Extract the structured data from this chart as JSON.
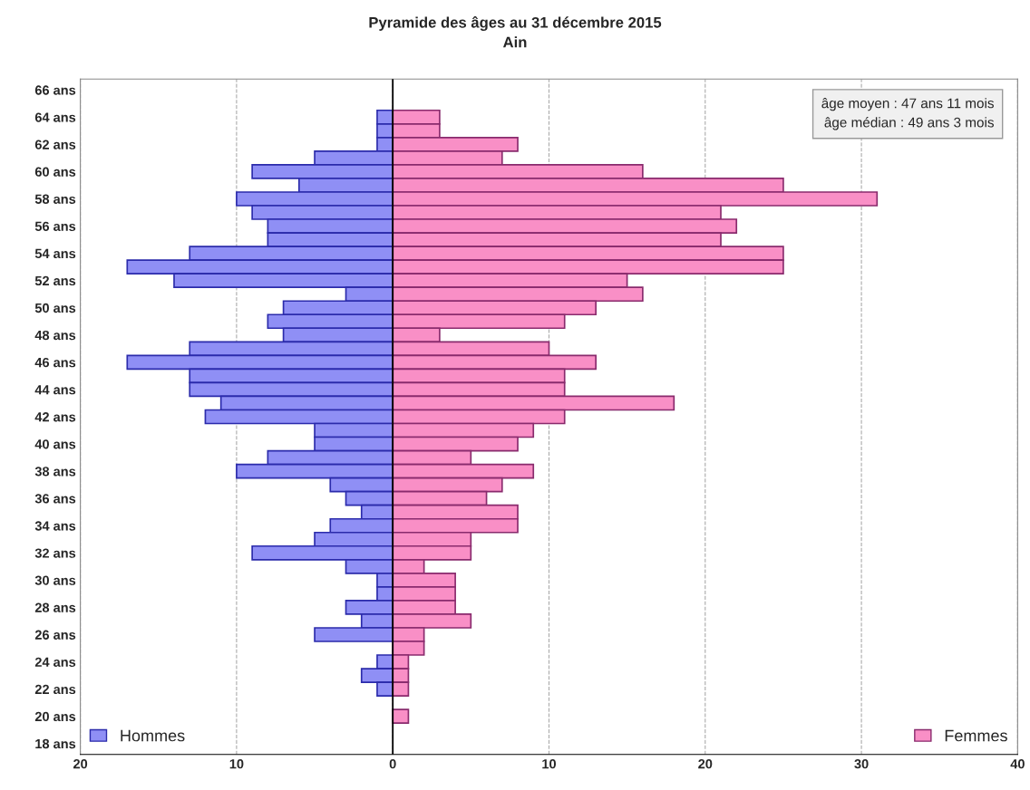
{
  "chart_data": {
    "type": "bar",
    "orientation": "horizontal",
    "stacked": true,
    "legend": "bottom",
    "title": "Pyramide des âges au 31 décembre 2015",
    "subtitle": "Ain",
    "x": [
      64,
      63,
      62,
      61,
      60,
      59,
      58,
      57,
      56,
      55,
      54,
      53,
      52,
      51,
      50,
      49,
      48,
      47,
      46,
      45,
      44,
      43,
      42,
      41,
      40,
      39,
      38,
      37,
      36,
      35,
      34,
      33,
      32,
      31,
      30,
      29,
      28,
      27,
      26,
      25,
      24,
      23,
      22,
      21,
      20
    ],
    "series": [
      {
        "name": "Hommes",
        "color": "#8f8ff5",
        "values": [
          -1,
          -1,
          -1,
          -5,
          -9,
          -6,
          -10,
          -9,
          -8,
          -8,
          -13,
          -17,
          -14,
          -3,
          -7,
          -8,
          -7,
          -13,
          -17,
          -13,
          -13,
          -11,
          -12,
          -5,
          -5,
          -8,
          -10,
          -4,
          -3,
          -2,
          -4,
          -5,
          -9,
          -3,
          -1,
          -1,
          -3,
          -2,
          -5,
          0,
          -1,
          -2,
          -1,
          0,
          0
        ]
      },
      {
        "name": "Femmes",
        "color": "#f98fc6",
        "values": [
          3,
          3,
          8,
          7,
          16,
          25,
          31,
          21,
          22,
          21,
          25,
          25,
          15,
          16,
          13,
          11,
          3,
          10,
          13,
          11,
          11,
          18,
          11,
          9,
          8,
          5,
          9,
          7,
          6,
          8,
          8,
          5,
          5,
          2,
          4,
          4,
          4,
          5,
          2,
          2,
          1,
          1,
          1,
          0,
          1
        ]
      }
    ],
    "xlim": [
      -20,
      40
    ],
    "xticks": [
      {
        "value": -20,
        "label": "20"
      },
      {
        "value": -10,
        "label": "10"
      },
      0,
      10,
      20,
      30,
      40
    ],
    "ylim": [
      17.2,
      66.8
    ],
    "yticks": [
      {
        "value": 18,
        "label": "18 ans"
      },
      {
        "value": 20,
        "label": "20 ans"
      },
      {
        "value": 22,
        "label": "22 ans"
      },
      {
        "value": 24,
        "label": "24 ans"
      },
      {
        "value": 26,
        "label": "26 ans"
      },
      {
        "value": 28,
        "label": "28 ans"
      },
      {
        "value": 30,
        "label": "30 ans"
      },
      {
        "value": 32,
        "label": "32 ans"
      },
      {
        "value": 34,
        "label": "34 ans"
      },
      {
        "value": 36,
        "label": "36 ans"
      },
      {
        "value": 38,
        "label": "38 ans"
      },
      {
        "value": 40,
        "label": "40 ans"
      },
      {
        "value": 42,
        "label": "42 ans"
      },
      {
        "value": 44,
        "label": "44 ans"
      },
      {
        "value": 46,
        "label": "46 ans"
      },
      {
        "value": 48,
        "label": "48 ans"
      },
      {
        "value": 50,
        "label": "50 ans"
      },
      {
        "value": 52,
        "label": "52 ans"
      },
      {
        "value": 54,
        "label": "54 ans"
      },
      {
        "value": 56,
        "label": "56 ans"
      },
      {
        "value": 58,
        "label": "58 ans"
      },
      {
        "value": 60,
        "label": "60 ans"
      },
      {
        "value": 62,
        "label": "62 ans"
      },
      {
        "value": 64,
        "label": "64 ans"
      },
      {
        "value": 66,
        "label": "66 ans"
      }
    ],
    "ref_lines": [
      {
        "axis": "x",
        "value": 0,
        "color": "#000000",
        "line_style": "solid"
      }
    ],
    "grid": "x",
    "annotations": [
      "âge moyen : 47 ans 11 mois\nâge médian : 49 ans 3 mois"
    ]
  }
}
